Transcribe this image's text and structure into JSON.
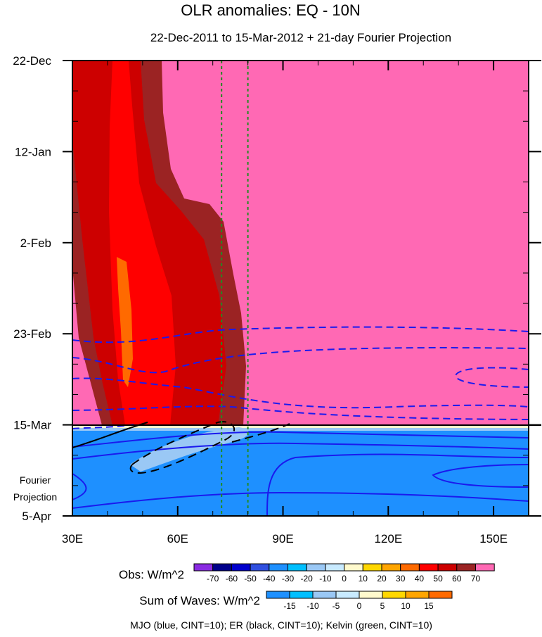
{
  "chart_data": {
    "type": "heatmap",
    "title": "OLR anomalies: EQ - 10N",
    "subtitle": "22-Dec-2011 to 15-Mar-2012 + 21-day Fourier Projection",
    "x_ticks": [
      "30E",
      "60E",
      "90E",
      "120E",
      "150E"
    ],
    "x_tick_values": [
      30,
      60,
      90,
      120,
      150
    ],
    "xlim": [
      30,
      160
    ],
    "y_ticks": [
      "22-Dec",
      "12-Jan",
      "2-Feb",
      "23-Feb",
      "15-Mar",
      "5-Apr"
    ],
    "y_tick_days": [
      0,
      21,
      42,
      63,
      84,
      105
    ],
    "ylim_days": [
      0,
      105
    ],
    "projection_label_line1": "Fourier",
    "projection_label_line2": "Projection",
    "obs_region_end_day": 84,
    "obs_colorbar": {
      "title": "Obs: W/m^2",
      "labels": [
        "-70",
        "-60",
        "-50",
        "-40",
        "-30",
        "-20",
        "-10",
        "0",
        "10",
        "20",
        "30",
        "40",
        "50",
        "60",
        "70"
      ],
      "colors": [
        "#8a2be2",
        "#00008b",
        "#0000cd",
        "#3050e0",
        "#1e90ff",
        "#00bfff",
        "#9ac8f5",
        "#c8eaff",
        "#fffacd",
        "#ffd700",
        "#ffa500",
        "#ff6a00",
        "#ff0000",
        "#cd0000",
        "#9b2323",
        "#ff69b4"
      ]
    },
    "waves_colorbar": {
      "title": "Sum of Waves: W/m^2",
      "labels": [
        "-15",
        "-10",
        "-5",
        "0",
        "5",
        "10",
        "15"
      ],
      "colors": [
        "#1e90ff",
        "#00bfff",
        "#9ac8f5",
        "#c8eaff",
        "#fffacd",
        "#ffd700",
        "#ffa500",
        "#ff6a00"
      ]
    },
    "footnote": "MJO (blue, CINT=10); ER (black, CINT=10); Kelvin (green, CINT=10)",
    "kelvin_lines_lon": [
      72.5,
      80
    ],
    "colors": {
      "background": "#ff69b4",
      "obs_band1": "#9b2323",
      "obs_band2": "#cd0000",
      "obs_band3": "#ff0000",
      "obs_band4": "#ff6a00",
      "projection_fill": "#1e90ff",
      "projection_light": "#9ac8f5",
      "projection_pale": "#fffacd",
      "mjo": "#1a1aee",
      "er": "#000000",
      "kelvin": "#228b22"
    }
  }
}
